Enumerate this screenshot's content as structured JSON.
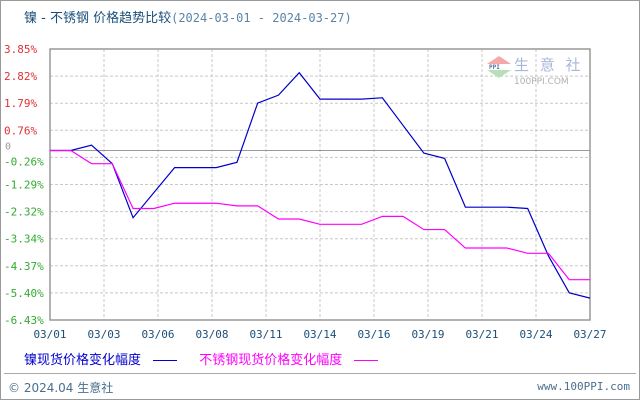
{
  "header": {
    "title": "镍 - 不锈钢 价格趋势比较",
    "date_range": "(2024-03-01 - 2024-03-27)"
  },
  "watermark": {
    "name": "生 意 社",
    "site": "100PPI.COM",
    "badge": "PPI"
  },
  "legend": {
    "series1_label": "镍现货价格变化幅度",
    "series1_color": "#0000cc",
    "series2_label": "不锈钢现货价格变化幅度",
    "series2_color": "#ff00ff"
  },
  "footer": {
    "copyright": "© 2024.04 生意社",
    "site": "www.100PPI.com"
  },
  "chart_data": {
    "type": "line",
    "title": "镍 - 不锈钢 价格趋势比较 (2024-03-01 - 2024-03-27)",
    "xlabel": "",
    "ylabel": "",
    "ylim": [
      -6.43,
      3.85
    ],
    "y_ticks": [
      "3.85%",
      "2.82%",
      "1.79%",
      "0.76%",
      "-0.26%",
      "-1.29%",
      "-2.32%",
      "-3.34%",
      "-4.37%",
      "-5.40%",
      "-6.43%"
    ],
    "x_ticks": [
      "03/01",
      "03/03",
      "03/06",
      "03/08",
      "03/11",
      "03/14",
      "03/16",
      "03/19",
      "03/21",
      "03/24",
      "03/27"
    ],
    "grid": true,
    "legend_position": "bottom",
    "x": [
      "03/01",
      "03/02",
      "03/03",
      "03/04",
      "03/05",
      "03/06",
      "03/07",
      "03/08",
      "03/09",
      "03/10",
      "03/11",
      "03/12",
      "03/13",
      "03/14",
      "03/15",
      "03/16",
      "03/17",
      "03/18",
      "03/19",
      "03/20",
      "03/21",
      "03/22",
      "03/23",
      "03/24",
      "03/25",
      "03/26",
      "03/27"
    ],
    "series": [
      {
        "name": "镍现货价格变化幅度",
        "color": "#0000cc",
        "values": [
          0,
          0,
          0.2,
          -0.5,
          -2.55,
          -1.6,
          -0.65,
          -0.65,
          -0.65,
          -0.45,
          1.8,
          2.1,
          2.95,
          1.95,
          1.95,
          1.95,
          2.0,
          0.95,
          -0.1,
          -0.3,
          -2.15,
          -2.15,
          -2.15,
          -2.2,
          -4.0,
          -5.4,
          -5.6
        ]
      },
      {
        "name": "不锈钢现货价格变化幅度",
        "color": "#ff00ff",
        "values": [
          0,
          0,
          -0.5,
          -0.5,
          -2.2,
          -2.2,
          -2.0,
          -2.0,
          -2.0,
          -2.1,
          -2.1,
          -2.6,
          -2.6,
          -2.8,
          -2.8,
          -2.8,
          -2.5,
          -2.5,
          -3.0,
          -3.0,
          -3.7,
          -3.7,
          -3.7,
          -3.9,
          -3.9,
          -4.9,
          -4.9
        ]
      }
    ]
  }
}
